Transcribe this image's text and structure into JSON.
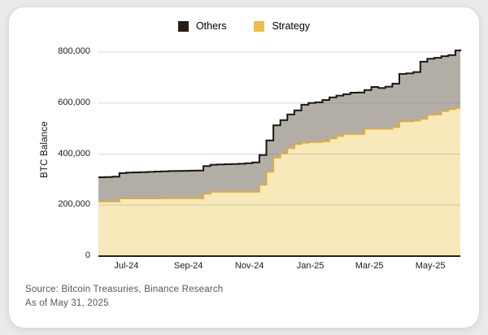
{
  "legend": {
    "items": [
      {
        "label": "Others",
        "color": "#241e15"
      },
      {
        "label": "Strategy",
        "color": "#ecbf4d"
      }
    ]
  },
  "source": {
    "line1": "Source: Bitcoin Treasuries, Binance Research",
    "line2": "As of May 31, 2025"
  },
  "chart_data": {
    "type": "area",
    "variant": "stacked-step",
    "title": "",
    "xlabel": "",
    "ylabel": "BTC Balance",
    "ylim": [
      0,
      800000
    ],
    "grid": "horizontal",
    "legend_position": "top-center",
    "colors": {
      "strategy_fill": "#f8e9bb",
      "strategy_stroke": "#ddad3e",
      "others_fill": "#b2aea6",
      "others_stroke": "#1c1712",
      "gridline": "rgba(110,110,110,0.28)",
      "axis": "#26221d"
    },
    "x": [
      "2024-06-03",
      "2024-06-10",
      "2024-06-17",
      "2024-06-24",
      "2024-07-01",
      "2024-07-08",
      "2024-07-15",
      "2024-07-22",
      "2024-07-29",
      "2024-08-05",
      "2024-08-12",
      "2024-08-19",
      "2024-08-26",
      "2024-09-02",
      "2024-09-09",
      "2024-09-16",
      "2024-09-23",
      "2024-09-30",
      "2024-10-07",
      "2024-10-14",
      "2024-10-21",
      "2024-10-28",
      "2024-11-04",
      "2024-11-11",
      "2024-11-18",
      "2024-11-25",
      "2024-12-02",
      "2024-12-09",
      "2024-12-16",
      "2024-12-23",
      "2024-12-30",
      "2025-01-06",
      "2025-01-13",
      "2025-01-20",
      "2025-01-27",
      "2025-02-03",
      "2025-02-10",
      "2025-02-17",
      "2025-02-24",
      "2025-03-03",
      "2025-03-10",
      "2025-03-17",
      "2025-03-24",
      "2025-03-31",
      "2025-04-07",
      "2025-04-14",
      "2025-04-21",
      "2025-04-28",
      "2025-05-05",
      "2025-05-12",
      "2025-05-19",
      "2025-05-26",
      "2025-05-31"
    ],
    "series": [
      {
        "name": "Strategy",
        "values": [
          214246,
          214246,
          214246,
          226331,
          226331,
          226331,
          226331,
          226331,
          226331,
          226500,
          226500,
          226500,
          226500,
          226500,
          226500,
          244800,
          252220,
          252220,
          252220,
          252220,
          252220,
          252220,
          252220,
          279420,
          331200,
          386700,
          402100,
          423650,
          439000,
          444262,
          446400,
          447470,
          450000,
          461000,
          471107,
          478740,
          478740,
          478740,
          499096,
          499096,
          499096,
          499226,
          506137,
          528185,
          528185,
          531644,
          538200,
          553555,
          555450,
          568840,
          576230,
          580250,
          580250
        ]
      },
      {
        "name": "Others",
        "values": [
          95000,
          96000,
          97000,
          99000,
          101000,
          102000,
          103000,
          104000,
          105000,
          106000,
          107000,
          107500,
          108000,
          108500,
          109000,
          108000,
          106000,
          107000,
          108000,
          109000,
          110000,
          112000,
          115000,
          117000,
          122000,
          126000,
          131000,
          131500,
          132000,
          149000,
          154000,
          156000,
          162000,
          161000,
          158000,
          156000,
          162000,
          163000,
          152000,
          164000,
          160000,
          165000,
          170000,
          186000,
          188000,
          190000,
          224000,
          220000,
          222000,
          215000,
          212000,
          226000,
          230000
        ]
      }
    ],
    "yticks": [
      {
        "v": 0,
        "label": "0"
      },
      {
        "v": 200000,
        "label": "200,000"
      },
      {
        "v": 400000,
        "label": "400,000"
      },
      {
        "v": 600000,
        "label": "600,000"
      },
      {
        "v": 800000,
        "label": "800,000"
      }
    ],
    "xticks": [
      {
        "date": "2024-07-01",
        "label": "Jul-24"
      },
      {
        "date": "2024-09-01",
        "label": "Sep-24"
      },
      {
        "date": "2024-11-01",
        "label": "Nov-24"
      },
      {
        "date": "2025-01-01",
        "label": "Jan-25"
      },
      {
        "date": "2025-03-01",
        "label": "Mar-25"
      },
      {
        "date": "2025-05-01",
        "label": "May-25"
      }
    ]
  }
}
